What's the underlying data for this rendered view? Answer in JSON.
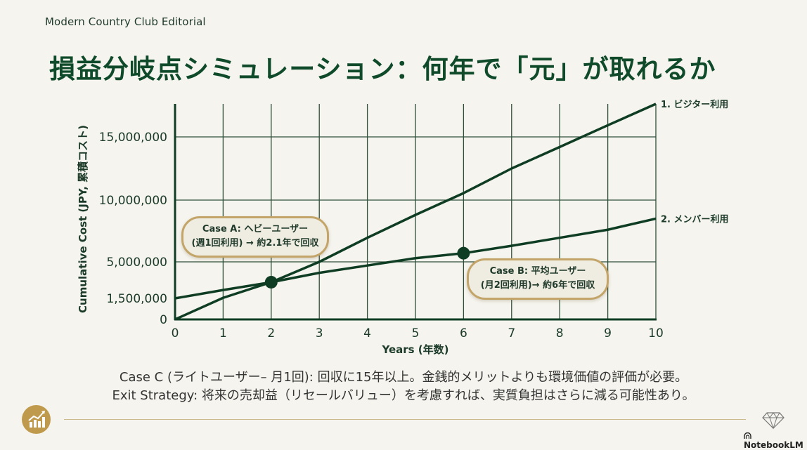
{
  "header": {
    "brand": "Modern Country Club Editorial",
    "title": "損益分岐点シミュレーション：何年で「元」が取れるか"
  },
  "chart_data": {
    "type": "line",
    "title": "損益分岐点シミュレーション：何年で「元」が取れるか",
    "xlabel": "Years (年数)",
    "ylabel": "Cumulative Cost (JPY, 累積コスト)",
    "x": [
      0,
      1,
      2,
      3,
      4,
      5,
      6,
      7,
      8,
      9,
      10
    ],
    "x_ticks": [
      "0",
      "1",
      "2",
      "3",
      "4",
      "5",
      "6",
      "7",
      "8",
      "9",
      "10"
    ],
    "y_ticks": [
      "0",
      "1,500,000",
      "5,000,000",
      "10,000,000",
      "15,000,000"
    ],
    "y_tick_values": [
      0,
      1500000,
      5000000,
      10000000,
      15000000
    ],
    "xlim": [
      0,
      10
    ],
    "ylim": [
      0,
      17700000
    ],
    "grid": true,
    "series": [
      {
        "name": "1. ビジター利用",
        "values": [
          0,
          1550000,
          3050000,
          5000000,
          6950000,
          8800000,
          10550000,
          12500000,
          14200000,
          15950000,
          17700000
        ]
      },
      {
        "name": "2. メンバー利用",
        "values": [
          1500000,
          2300000,
          3050000,
          3950000,
          4650000,
          5300000,
          5700000,
          6300000,
          6950000,
          7600000,
          8500000
        ]
      }
    ],
    "annotations": [
      {
        "id": "case_a",
        "x": 2,
        "y": 3050000,
        "line1": "Case A: ヘビーユーザー",
        "line2": "(週1回利用) → 約2.1年で回収"
      },
      {
        "id": "case_b",
        "x": 6,
        "y": 5700000,
        "line1": "Case B: 平均ユーザー",
        "line2": "(月2回利用)→ 約6年で回収"
      }
    ],
    "colors": {
      "line": "#0f3d24",
      "grid": "#2f4f3a",
      "callout_border": "#c4a569",
      "callout_fill": "#efece2"
    }
  },
  "notes": {
    "line1": "Case C (ライトユーザー– 月1回): 回収に15年以上。金銭的メリットよりも環境価値の評価が必要。",
    "line2": "Exit Strategy: 将来の売却益（リセールバリュー）を考慮すれば、実質負担はさらに減る可能性あり。"
  },
  "footer": {
    "left_icon": "growth-chart-icon",
    "right_icon": "diamond-icon",
    "watermark": "NotebookLM"
  }
}
